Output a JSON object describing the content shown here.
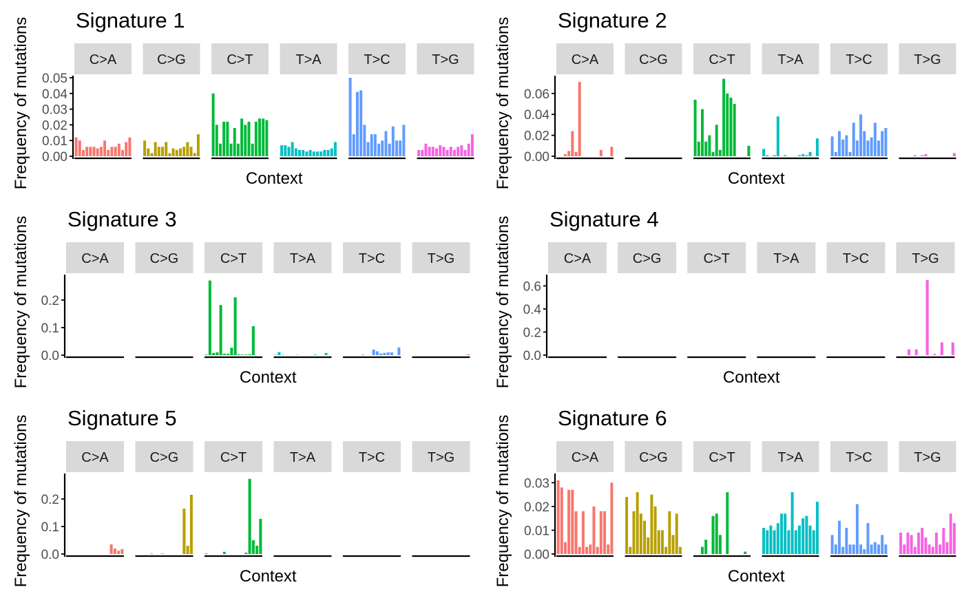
{
  "figure": {
    "colors": {
      "C>A": "#F8766D",
      "C>G": "#B79F00",
      "C>T": "#00BA38",
      "T>A": "#00BFC4",
      "T>C": "#619CFF",
      "T>G": "#F564E3",
      "strip": "#D9D9D9",
      "axis": "#000000",
      "tick_label": "#4D4D4D"
    },
    "facet_labels": [
      "C>A",
      "C>G",
      "C>T",
      "T>A",
      "T>C",
      "T>G"
    ]
  },
  "chart_data": [
    {
      "type": "bar",
      "title": "Signature 1",
      "xlabel": "Context",
      "ylabel": "Frequency of mutations",
      "ylim": [
        0,
        0.05
      ],
      "yticks": [
        "0.00",
        "0.01",
        "0.02",
        "0.03",
        "0.04",
        "0.05"
      ],
      "series": [
        {
          "name": "C>A",
          "values": [
            0.012,
            0.01,
            0.004,
            0.006,
            0.006,
            0.006,
            0.005,
            0.006,
            0.01,
            0.004,
            0.006,
            0.006,
            0.008,
            0.004,
            0.009,
            0.012
          ]
        },
        {
          "name": "C>G",
          "values": [
            0.01,
            0.005,
            0.002,
            0.009,
            0.006,
            0.006,
            0.009,
            0.002,
            0.005,
            0.004,
            0.005,
            0.006,
            0.009,
            0.006,
            0.002,
            0.014
          ]
        },
        {
          "name": "C>T",
          "values": [
            0.04,
            0.02,
            0.008,
            0.022,
            0.022,
            0.008,
            0.018,
            0.008,
            0.024,
            0.02,
            0.022,
            0.008,
            0.022,
            0.024,
            0.024,
            0.023
          ]
        },
        {
          "name": "T>A",
          "values": [
            0.007,
            0.007,
            0.006,
            0.009,
            0.005,
            0.004,
            0.004,
            0.003,
            0.004,
            0.003,
            0.003,
            0.003,
            0.004,
            0.004,
            0.005,
            0.009
          ]
        },
        {
          "name": "T>C",
          "values": [
            0.05,
            0.014,
            0.041,
            0.042,
            0.02,
            0.009,
            0.014,
            0.014,
            0.008,
            0.01,
            0.016,
            0.008,
            0.019,
            0.01,
            0.01,
            0.02
          ]
        },
        {
          "name": "T>G",
          "values": [
            0.004,
            0.004,
            0.008,
            0.006,
            0.006,
            0.005,
            0.007,
            0.006,
            0.004,
            0.006,
            0.004,
            0.006,
            0.007,
            0.004,
            0.008,
            0.014
          ]
        }
      ]
    },
    {
      "type": "bar",
      "title": "Signature 2",
      "xlabel": "Context",
      "ylabel": "Frequency of mutations",
      "ylim": [
        0,
        0.075
      ],
      "yticks": [
        "0.00",
        "0.02",
        "0.04",
        "0.06"
      ],
      "series": [
        {
          "name": "C>A",
          "values": [
            0,
            0,
            0.002,
            0.005,
            0.024,
            0.004,
            0.071,
            0,
            0,
            0,
            0,
            0,
            0.006,
            0,
            0,
            0.009
          ]
        },
        {
          "name": "C>G",
          "values": [
            0,
            0,
            0,
            0,
            0,
            0,
            0,
            0,
            0,
            0,
            0,
            0,
            0,
            0,
            0,
            0
          ]
        },
        {
          "name": "C>T",
          "values": [
            0.054,
            0.014,
            0.045,
            0.014,
            0.02,
            0.004,
            0.03,
            0.006,
            0.074,
            0.06,
            0.056,
            0.05,
            0,
            0,
            0,
            0.01
          ]
        },
        {
          "name": "T>A",
          "values": [
            0.007,
            0.001,
            0,
            0.001,
            0.038,
            0,
            0.001,
            0,
            0,
            0,
            0.001,
            0.002,
            0.001,
            0.004,
            0,
            0.017
          ]
        },
        {
          "name": "T>C",
          "values": [
            0.019,
            0.004,
            0.024,
            0.016,
            0.02,
            0.004,
            0.032,
            0.015,
            0.04,
            0.024,
            0.015,
            0.018,
            0.032,
            0.015,
            0.024,
            0.027
          ]
        },
        {
          "name": "T>G",
          "values": [
            0,
            0,
            0,
            0,
            0.001,
            0,
            0.001,
            0.002,
            0,
            0,
            0,
            0,
            0,
            0,
            0,
            0.003
          ]
        }
      ]
    },
    {
      "type": "bar",
      "title": "Signature 3",
      "xlabel": "Context",
      "ylabel": "Frequency of mutations",
      "ylim": [
        0,
        0.285
      ],
      "yticks": [
        "0.0",
        "0.1",
        "0.2"
      ],
      "series": [
        {
          "name": "C>A",
          "values": [
            0,
            0,
            0,
            0,
            0,
            0,
            0,
            0,
            0,
            0,
            0,
            0,
            0,
            0,
            0,
            0
          ]
        },
        {
          "name": "C>G",
          "values": [
            0,
            0,
            0,
            0,
            0,
            0,
            0,
            0,
            0,
            0,
            0,
            0,
            0,
            0,
            0,
            0
          ]
        },
        {
          "name": "C>T",
          "values": [
            0.002,
            0.271,
            0.008,
            0.01,
            0.182,
            0.005,
            0.005,
            0.027,
            0.21,
            0.003,
            0.002,
            0.002,
            0.003,
            0.105,
            0,
            0
          ]
        },
        {
          "name": "T>A",
          "values": [
            0.001,
            0.011,
            0.001,
            0,
            0,
            0,
            0.001,
            0,
            0,
            0,
            0,
            0.002,
            0,
            0,
            0.008,
            0
          ]
        },
        {
          "name": "T>C",
          "values": [
            0,
            0,
            0,
            0,
            0,
            0.002,
            0,
            0,
            0.02,
            0.014,
            0.006,
            0.008,
            0.01,
            0.01,
            0,
            0.028
          ]
        },
        {
          "name": "T>G",
          "values": [
            0,
            0,
            0,
            0,
            0,
            0,
            0,
            0,
            0,
            0,
            0,
            0,
            0,
            0,
            0,
            0.003
          ]
        }
      ]
    },
    {
      "type": "bar",
      "title": "Signature 4",
      "xlabel": "Context",
      "ylabel": "Frequency of mutations",
      "ylim": [
        0,
        0.68
      ],
      "yticks": [
        "0.0",
        "0.2",
        "0.4",
        "0.6"
      ],
      "series": [
        {
          "name": "C>A",
          "values": [
            0,
            0,
            0,
            0,
            0,
            0,
            0,
            0,
            0,
            0,
            0,
            0,
            0,
            0,
            0,
            0
          ]
        },
        {
          "name": "C>G",
          "values": [
            0,
            0,
            0,
            0,
            0,
            0,
            0,
            0,
            0,
            0,
            0,
            0,
            0,
            0,
            0,
            0
          ]
        },
        {
          "name": "C>T",
          "values": [
            0,
            0,
            0,
            0,
            0,
            0,
            0,
            0,
            0,
            0,
            0,
            0,
            0,
            0,
            0,
            0
          ]
        },
        {
          "name": "T>A",
          "values": [
            0,
            0,
            0,
            0,
            0,
            0,
            0,
            0,
            0,
            0,
            0,
            0,
            0,
            0,
            0,
            0
          ]
        },
        {
          "name": "T>C",
          "values": [
            0,
            0,
            0,
            0,
            0,
            0,
            0,
            0,
            0,
            0,
            0,
            0,
            0,
            0,
            0,
            0
          ]
        },
        {
          "name": "T>G",
          "values": [
            0,
            0,
            0,
            0.05,
            0,
            0.05,
            0,
            0,
            0.65,
            0,
            0.01,
            0,
            0.11,
            0,
            0,
            0.11
          ]
        }
      ]
    },
    {
      "type": "bar",
      "title": "Signature 5",
      "xlabel": "Context",
      "ylabel": "Frequency of mutations",
      "ylim": [
        0,
        0.285
      ],
      "yticks": [
        "0.0",
        "0.1",
        "0.2"
      ],
      "series": [
        {
          "name": "C>A",
          "values": [
            0,
            0,
            0,
            0,
            0,
            0,
            0,
            0,
            0,
            0,
            0,
            0,
            0.035,
            0.02,
            0.012,
            0.018
          ]
        },
        {
          "name": "C>G",
          "values": [
            0,
            0,
            0,
            0,
            0.002,
            0,
            0,
            0.002,
            0,
            0,
            0,
            0,
            0,
            0.165,
            0.03,
            0.215
          ]
        },
        {
          "name": "C>T",
          "values": [
            0.002,
            0,
            0,
            0,
            0,
            0.008,
            0,
            0,
            0,
            0,
            0,
            0.005,
            0.273,
            0.05,
            0.03,
            0.128
          ]
        },
        {
          "name": "T>A",
          "values": [
            0,
            0,
            0,
            0,
            0,
            0,
            0,
            0,
            0,
            0,
            0,
            0,
            0,
            0,
            0,
            0
          ]
        },
        {
          "name": "T>C",
          "values": [
            0,
            0,
            0,
            0,
            0,
            0,
            0,
            0,
            0,
            0,
            0,
            0,
            0,
            0,
            0,
            0
          ]
        },
        {
          "name": "T>G",
          "values": [
            0,
            0,
            0,
            0,
            0,
            0,
            0,
            0,
            0,
            0,
            0,
            0,
            0,
            0,
            0,
            0
          ]
        }
      ]
    },
    {
      "type": "bar",
      "title": "Signature 6",
      "xlabel": "Context",
      "ylabel": "Frequency of mutations",
      "ylim": [
        0,
        0.033
      ],
      "yticks": [
        "0.00",
        "0.01",
        "0.02",
        "0.03"
      ],
      "series": [
        {
          "name": "C>A",
          "values": [
            0.031,
            0.028,
            0.005,
            0.027,
            0.027,
            0.018,
            0.003,
            0.018,
            0.003,
            0.004,
            0.02,
            0.003,
            0.018,
            0.018,
            0.004,
            0.03
          ]
        },
        {
          "name": "C>G",
          "values": [
            0.024,
            0.003,
            0.018,
            0.026,
            0.017,
            0.014,
            0.007,
            0.025,
            0.02,
            0.01,
            0.01,
            0.003,
            0.018,
            0.008,
            0.017,
            0.003
          ]
        },
        {
          "name": "C>T",
          "values": [
            0,
            0,
            0.003,
            0.006,
            0,
            0.016,
            0.017,
            0.008,
            0,
            0.026,
            0,
            0,
            0,
            0,
            0.001,
            0
          ]
        },
        {
          "name": "T>A",
          "values": [
            0.011,
            0.01,
            0.012,
            0.01,
            0.013,
            0.017,
            0.017,
            0.01,
            0.026,
            0.01,
            0.012,
            0.015,
            0.016,
            0.012,
            0.01,
            0.022
          ]
        },
        {
          "name": "T>C",
          "values": [
            0.008,
            0.004,
            0.014,
            0.003,
            0.011,
            0.004,
            0.004,
            0.021,
            0.004,
            0.002,
            0.013,
            0.004,
            0.005,
            0.004,
            0.008,
            0.004
          ]
        },
        {
          "name": "T>G",
          "values": [
            0.009,
            0.004,
            0.009,
            0.008,
            0.003,
            0.009,
            0.011,
            0.007,
            0.004,
            0.003,
            0.009,
            0.004,
            0.011,
            0.005,
            0.017,
            0.013
          ]
        }
      ]
    }
  ]
}
